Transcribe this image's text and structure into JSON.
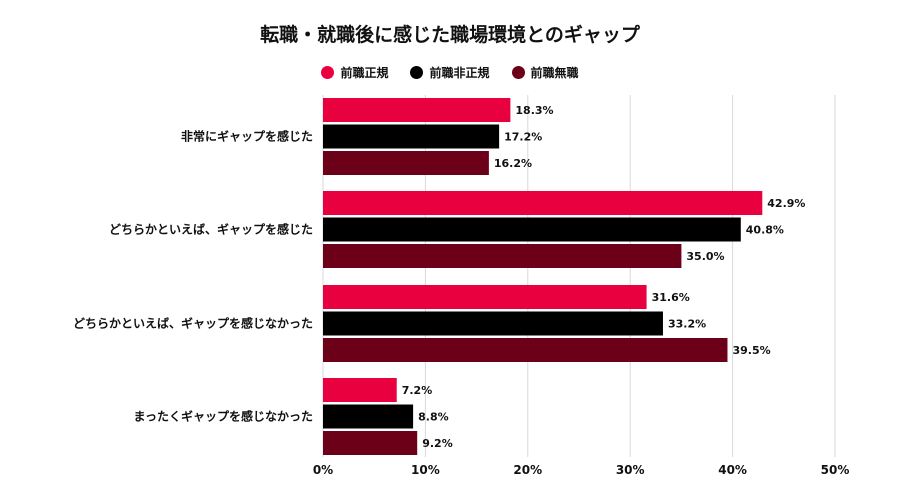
{
  "chart_data": {
    "type": "bar",
    "orientation": "horizontal",
    "title": "転職・就職後に感じた職場環境とのギャップ",
    "categories": [
      "非常にギャップを感じた",
      "どちらかといえば、ギャップを感じた",
      "どちらかといえば、ギャップを感じなかった",
      "まったくギャップを感じなかった"
    ],
    "series": [
      {
        "name": "前職正規",
        "color": "#e8003f",
        "values": [
          18.3,
          42.9,
          31.6,
          7.2
        ]
      },
      {
        "name": "前職非正規",
        "color": "#000000",
        "values": [
          17.2,
          40.8,
          33.2,
          8.8
        ]
      },
      {
        "name": "前職無職",
        "color": "#6b0018",
        "values": [
          16.2,
          35.0,
          39.5,
          9.2
        ]
      }
    ],
    "xlim": [
      0,
      50
    ],
    "x_ticks": [
      "0%",
      "10%",
      "20%",
      "30%",
      "40%",
      "50%"
    ],
    "value_suffix": "%",
    "grid": true,
    "legend_position": "top"
  }
}
